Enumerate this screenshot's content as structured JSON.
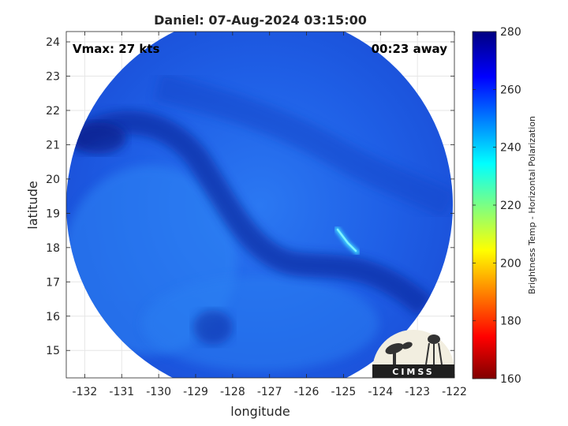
{
  "chart_data": {
    "type": "heatmap",
    "title": "Daniel: 07-Aug-2024 03:15:00",
    "xlabel": "longitude",
    "ylabel": "latitude",
    "xlim": [
      -132.5,
      -122
    ],
    "ylim": [
      14.2,
      24.3
    ],
    "xticks": [
      -132,
      -131,
      -130,
      -129,
      -128,
      -127,
      -126,
      -125,
      -124,
      -123,
      -122
    ],
    "yticks": [
      15,
      16,
      17,
      18,
      19,
      20,
      21,
      22,
      23,
      24
    ],
    "grid": true,
    "annotations": {
      "vmax": "Vmax: 27 kts",
      "offset": "00:23 away"
    },
    "colorbar": {
      "label": "Brightness Temp - Horizontal Polarization",
      "range": [
        160,
        280
      ],
      "ticks": [
        160,
        180,
        200,
        220,
        240,
        260,
        280
      ],
      "colormap": "jet"
    },
    "swath": {
      "shape": "circle",
      "center": [
        -127.25,
        19.2
      ],
      "radius_deg_lon": 5.25,
      "background_temp": 262,
      "features": [
        {
          "desc": "darker rainband arc",
          "temp_range": [
            266,
            272
          ]
        },
        {
          "desc": "bright cold streak near -125,18",
          "temp_range": [
            235,
            245
          ]
        }
      ]
    }
  },
  "logo": {
    "text": "CIMSS"
  },
  "colors": {
    "swath_base": "#1a5ae8",
    "band_dark": "#0a2a9c",
    "streak": "#40e0ff"
  }
}
